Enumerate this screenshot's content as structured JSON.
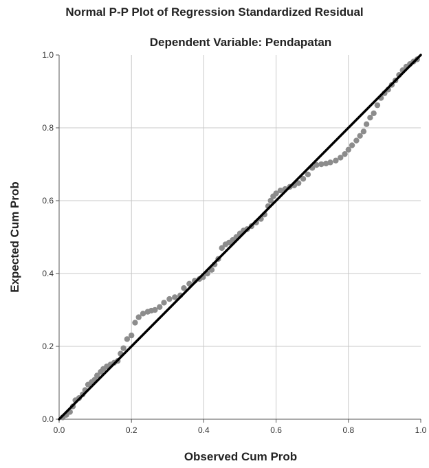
{
  "chart_data": {
    "type": "scatter",
    "title": "Normal P-P Plot of Regression Standardized Residual",
    "subtitle": "Dependent Variable: Pendapatan",
    "xlabel": "Observed Cum Prob",
    "ylabel": "Expected Cum Prob",
    "xlim": [
      0,
      1
    ],
    "ylim": [
      0,
      1
    ],
    "xticks": [
      "0.0",
      "0.2",
      "0.4",
      "0.6",
      "0.8",
      "1.0"
    ],
    "yticks": [
      "0.0",
      "0.2",
      "0.4",
      "0.6",
      "0.8",
      "1.0"
    ],
    "grid": true,
    "legend": "none",
    "point_color": "#8c8c8c",
    "reference_line": {
      "from": [
        0,
        0
      ],
      "to": [
        1,
        1
      ],
      "color": "#000000"
    },
    "series": [
      {
        "points": [
          [
            0.01,
            0.005
          ],
          [
            0.02,
            0.012
          ],
          [
            0.03,
            0.02
          ],
          [
            0.038,
            0.035
          ],
          [
            0.045,
            0.052
          ],
          [
            0.055,
            0.058
          ],
          [
            0.065,
            0.068
          ],
          [
            0.072,
            0.08
          ],
          [
            0.08,
            0.095
          ],
          [
            0.09,
            0.102
          ],
          [
            0.098,
            0.108
          ],
          [
            0.105,
            0.12
          ],
          [
            0.115,
            0.13
          ],
          [
            0.122,
            0.138
          ],
          [
            0.132,
            0.145
          ],
          [
            0.142,
            0.15
          ],
          [
            0.152,
            0.155
          ],
          [
            0.162,
            0.16
          ],
          [
            0.17,
            0.18
          ],
          [
            0.178,
            0.195
          ],
          [
            0.188,
            0.22
          ],
          [
            0.2,
            0.23
          ],
          [
            0.21,
            0.265
          ],
          [
            0.22,
            0.28
          ],
          [
            0.232,
            0.29
          ],
          [
            0.245,
            0.295
          ],
          [
            0.255,
            0.298
          ],
          [
            0.265,
            0.3
          ],
          [
            0.278,
            0.308
          ],
          [
            0.29,
            0.32
          ],
          [
            0.305,
            0.33
          ],
          [
            0.32,
            0.335
          ],
          [
            0.335,
            0.34
          ],
          [
            0.345,
            0.36
          ],
          [
            0.36,
            0.372
          ],
          [
            0.375,
            0.38
          ],
          [
            0.388,
            0.385
          ],
          [
            0.398,
            0.39
          ],
          [
            0.41,
            0.4
          ],
          [
            0.422,
            0.41
          ],
          [
            0.43,
            0.425
          ],
          [
            0.44,
            0.44
          ],
          [
            0.45,
            0.47
          ],
          [
            0.46,
            0.48
          ],
          [
            0.47,
            0.485
          ],
          [
            0.48,
            0.492
          ],
          [
            0.49,
            0.5
          ],
          [
            0.5,
            0.51
          ],
          [
            0.51,
            0.518
          ],
          [
            0.52,
            0.522
          ],
          [
            0.532,
            0.53
          ],
          [
            0.545,
            0.54
          ],
          [
            0.558,
            0.55
          ],
          [
            0.568,
            0.562
          ],
          [
            0.578,
            0.585
          ],
          [
            0.585,
            0.6
          ],
          [
            0.592,
            0.612
          ],
          [
            0.6,
            0.62
          ],
          [
            0.612,
            0.628
          ],
          [
            0.625,
            0.632
          ],
          [
            0.638,
            0.638
          ],
          [
            0.65,
            0.642
          ],
          [
            0.662,
            0.648
          ],
          [
            0.675,
            0.66
          ],
          [
            0.688,
            0.672
          ],
          [
            0.7,
            0.69
          ],
          [
            0.712,
            0.698
          ],
          [
            0.725,
            0.7
          ],
          [
            0.738,
            0.702
          ],
          [
            0.75,
            0.705
          ],
          [
            0.765,
            0.71
          ],
          [
            0.778,
            0.718
          ],
          [
            0.79,
            0.728
          ],
          [
            0.8,
            0.74
          ],
          [
            0.81,
            0.752
          ],
          [
            0.822,
            0.765
          ],
          [
            0.832,
            0.778
          ],
          [
            0.842,
            0.79
          ],
          [
            0.85,
            0.81
          ],
          [
            0.86,
            0.828
          ],
          [
            0.87,
            0.84
          ],
          [
            0.88,
            0.862
          ],
          [
            0.89,
            0.882
          ],
          [
            0.9,
            0.895
          ],
          [
            0.91,
            0.905
          ],
          [
            0.92,
            0.918
          ],
          [
            0.93,
            0.93
          ],
          [
            0.94,
            0.945
          ],
          [
            0.95,
            0.958
          ],
          [
            0.96,
            0.968
          ],
          [
            0.97,
            0.975
          ],
          [
            0.98,
            0.982
          ],
          [
            0.99,
            0.988
          ]
        ]
      }
    ]
  }
}
